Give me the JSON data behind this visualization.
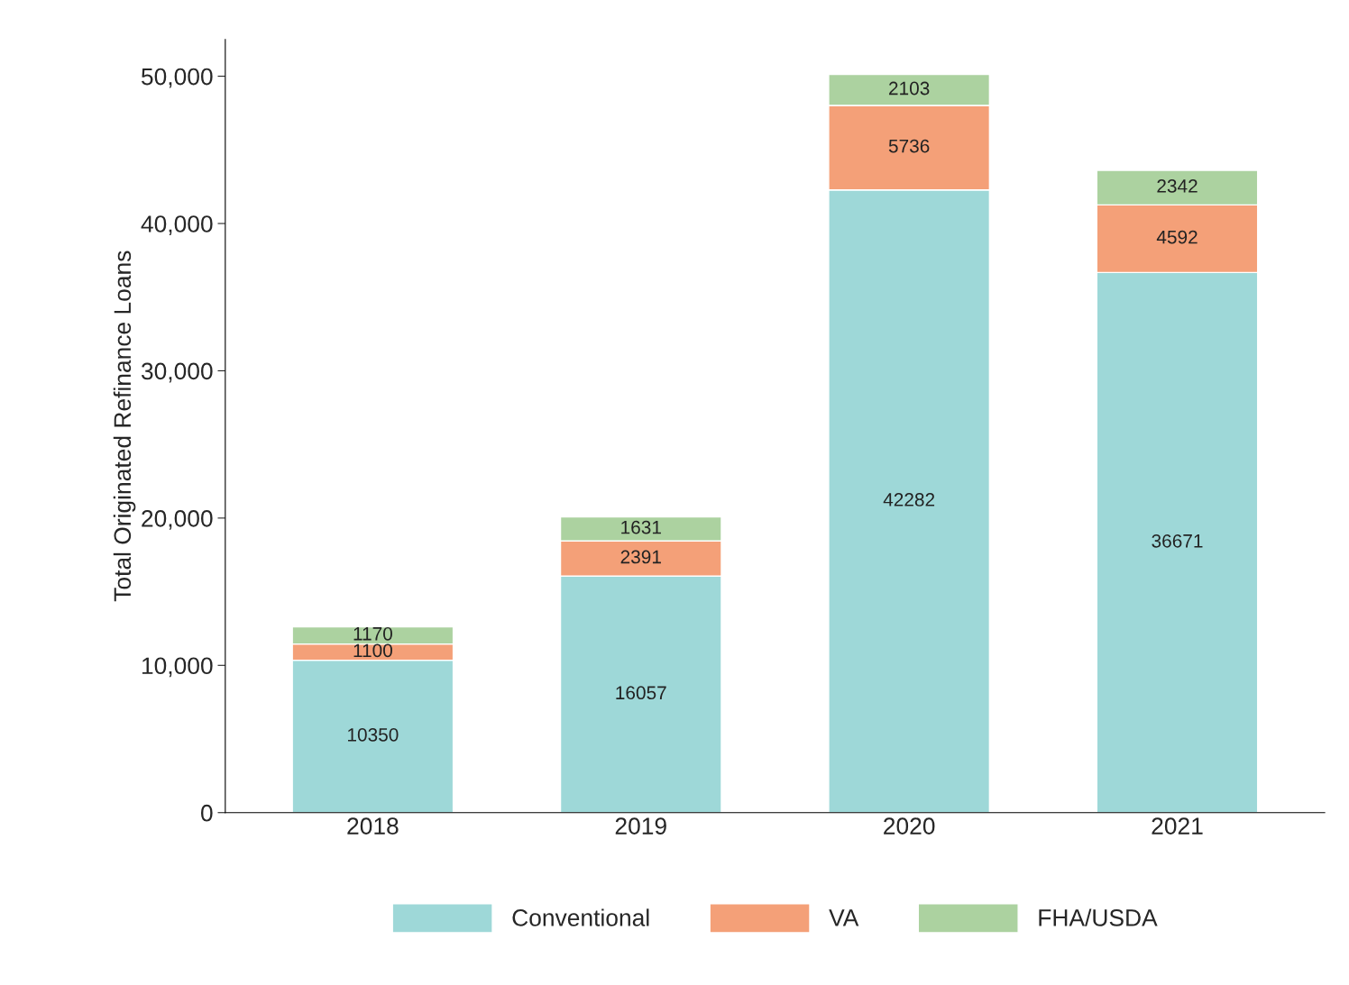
{
  "chart_data": {
    "type": "bar",
    "stacked": true,
    "ylabel": "Total Originated Refinance Loans",
    "categories": [
      "2018",
      "2019",
      "2020",
      "2021"
    ],
    "series": [
      {
        "name": "Conventional",
        "color": "#9ed8d8",
        "values": [
          10350,
          16057,
          42282,
          36671
        ]
      },
      {
        "name": "VA",
        "color": "#f4a078",
        "values": [
          1100,
          2391,
          5736,
          4592
        ]
      },
      {
        "name": "FHA/USDA",
        "color": "#acd2a0",
        "values": [
          1170,
          1631,
          2103,
          2342
        ]
      }
    ],
    "ylim": [
      0,
      52500
    ],
    "yticks": [
      {
        "value": 0,
        "label": "0"
      },
      {
        "value": 10000,
        "label": "10,000"
      },
      {
        "value": 20000,
        "label": "20,000"
      },
      {
        "value": 30000,
        "label": "30,000"
      },
      {
        "value": 40000,
        "label": "40,000"
      },
      {
        "value": 50000,
        "label": "50,000"
      }
    ],
    "data_labels": true,
    "grid": false,
    "legend": "bottom"
  }
}
